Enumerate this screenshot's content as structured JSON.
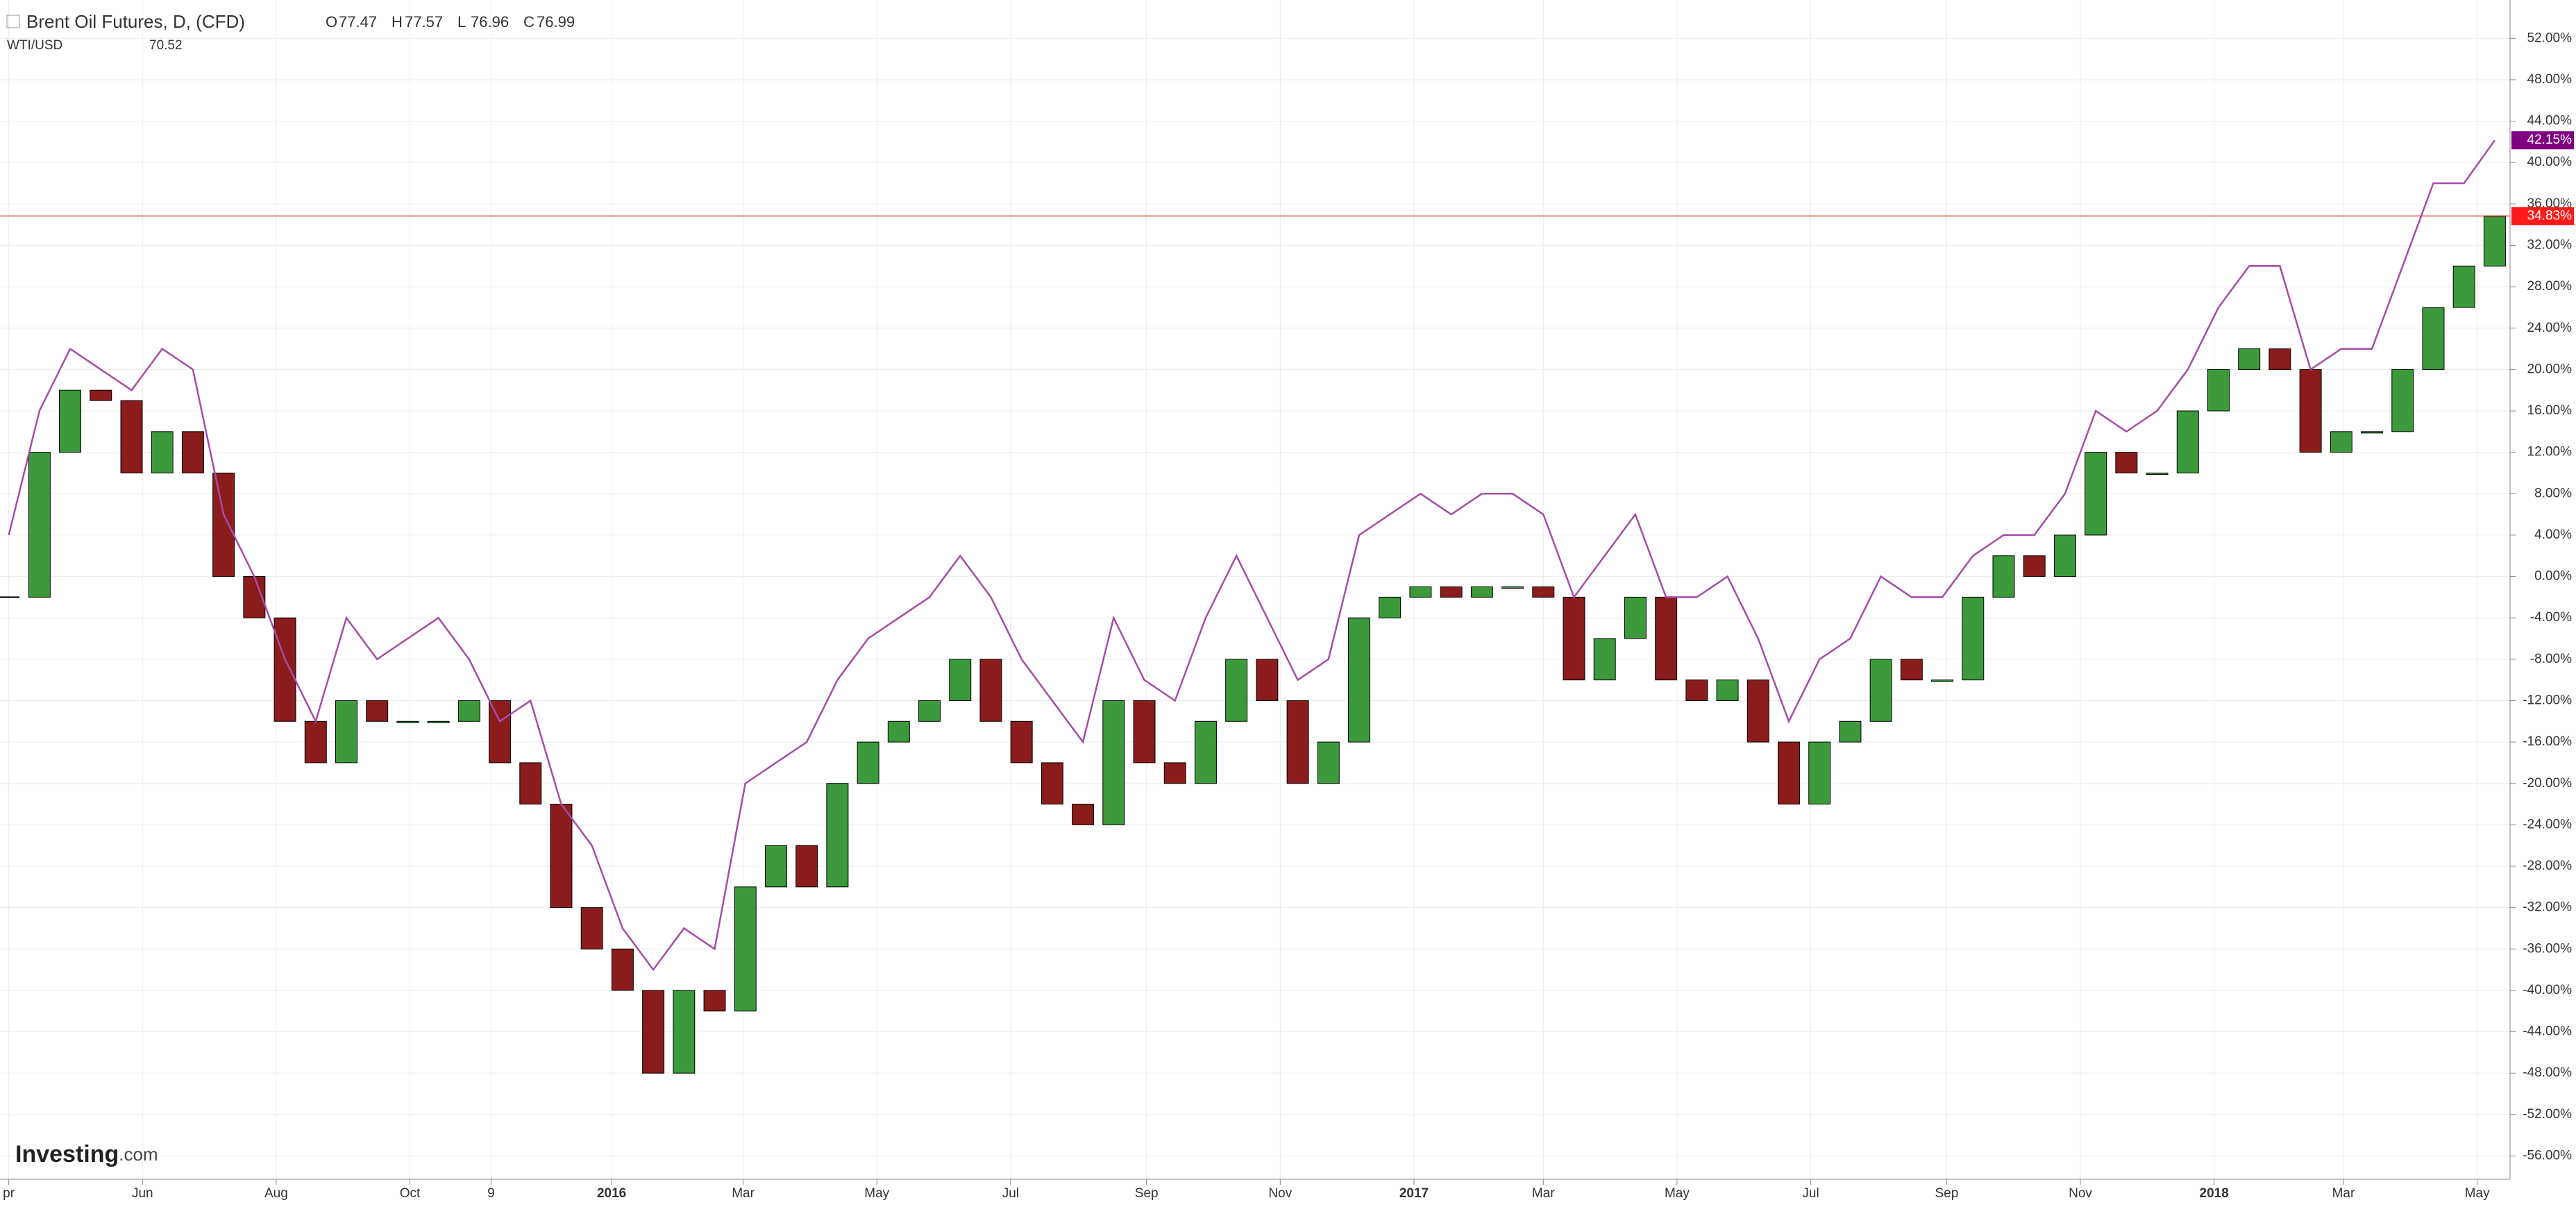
{
  "chart_data": {
    "type": "candlestick",
    "title": "Brent Oil Futures, D, (CFD)",
    "ohlc": [
      {
        "key": "O",
        "value": 77.47
      },
      {
        "key": "H",
        "value": 77.57
      },
      {
        "key": "L",
        "value": 76.96
      },
      {
        "key": "C",
        "value": 76.99
      }
    ],
    "watermark": [
      "Investing",
      ".com"
    ],
    "x": [
      "2015-04-01",
      "2015-04-15",
      "2015-04-29",
      "2015-05-13",
      "2015-05-27",
      "2015-06-10",
      "2015-06-24",
      "2015-07-08",
      "2015-07-22",
      "2015-08-05",
      "2015-08-19",
      "2015-09-02",
      "2015-09-16",
      "2015-09-30",
      "2015-10-14",
      "2015-10-28",
      "2015-11-11",
      "2015-11-25",
      "2015-12-09",
      "2015-12-23",
      "2016-01-06",
      "2016-01-20",
      "2016-02-03",
      "2016-02-17",
      "2016-03-02",
      "2016-03-16",
      "2016-03-30",
      "2016-04-13",
      "2016-04-27",
      "2016-05-11",
      "2016-05-25",
      "2016-06-08",
      "2016-06-22",
      "2016-07-06",
      "2016-07-20",
      "2016-08-03",
      "2016-08-17",
      "2016-08-31",
      "2016-09-14",
      "2016-09-28",
      "2016-10-12",
      "2016-10-26",
      "2016-11-09",
      "2016-11-23",
      "2016-12-07",
      "2016-12-21",
      "2017-01-04",
      "2017-01-18",
      "2017-02-01",
      "2017-02-15",
      "2017-03-01",
      "2017-03-15",
      "2017-03-29",
      "2017-04-12",
      "2017-04-26",
      "2017-05-10",
      "2017-05-24",
      "2017-06-07",
      "2017-06-21",
      "2017-07-05",
      "2017-07-19",
      "2017-08-02",
      "2017-08-16",
      "2017-08-30",
      "2017-09-13",
      "2017-09-27",
      "2017-10-11",
      "2017-10-25",
      "2017-11-08",
      "2017-11-22",
      "2017-12-06",
      "2017-12-20",
      "2018-01-03",
      "2018-01-17",
      "2018-01-31",
      "2018-02-14",
      "2018-02-28",
      "2018-03-14",
      "2018-03-28",
      "2018-04-11",
      "2018-04-25",
      "2018-05-09"
    ],
    "series": [
      {
        "name": "Brent Oil Futures, D, (CFD)",
        "type": "candlestick",
        "up_color": "#3c9a3c",
        "down_color": "#8b1c1c",
        "tag_color": "#ff1a1a",
        "last_label": "34.83%",
        "values": [
          -2,
          12,
          18,
          17,
          10,
          14,
          10,
          0,
          -4,
          -14,
          -18,
          -12,
          -14,
          -14,
          -14,
          -12,
          -18,
          -22,
          -32,
          -36,
          -40,
          -48,
          -40,
          -42,
          -30,
          -26,
          -30,
          -20,
          -16,
          -14,
          -12,
          -8,
          -14,
          -18,
          -22,
          -24,
          -12,
          -18,
          -20,
          -14,
          -8,
          -12,
          -20,
          -16,
          -4,
          -2,
          -1,
          -2,
          -1,
          -1,
          -2,
          -10,
          -6,
          -2,
          -10,
          -12,
          -10,
          -16,
          -22,
          -16,
          -14,
          -8,
          -10,
          -10,
          -2,
          2,
          0,
          4,
          12,
          10,
          10,
          16,
          20,
          22,
          20,
          12,
          14,
          14,
          20,
          26,
          30,
          34.83
        ]
      },
      {
        "name": "WTI/USD",
        "type": "line",
        "color": "#a64ca6",
        "tag_color": "#800080",
        "last_price": 70.52,
        "last_label": "42.15%",
        "values": [
          4,
          16,
          22,
          20,
          18,
          22,
          20,
          6,
          0,
          -8,
          -14,
          -4,
          -8,
          -6,
          -4,
          -8,
          -14,
          -12,
          -22,
          -26,
          -34,
          -38,
          -34,
          -36,
          -20,
          -18,
          -16,
          -10,
          -6,
          -4,
          -2,
          2,
          -2,
          -8,
          -12,
          -16,
          -4,
          -10,
          -12,
          -4,
          2,
          -4,
          -10,
          -8,
          4,
          6,
          8,
          6,
          8,
          8,
          6,
          -2,
          2,
          6,
          -2,
          -2,
          0,
          -6,
          -14,
          -8,
          -6,
          0,
          -2,
          -2,
          2,
          4,
          4,
          8,
          16,
          14,
          16,
          20,
          26,
          30,
          30,
          20,
          22,
          22,
          30,
          38,
          38,
          42.15
        ]
      }
    ],
    "xlim": [
      "2015-03-28",
      "2018-05-16"
    ],
    "xticks": [
      {
        "value": "2015-04-01",
        "label": "pr"
      },
      {
        "value": "2015-06-01",
        "label": "Jun"
      },
      {
        "value": "2015-08-01",
        "label": "Aug"
      },
      {
        "value": "2015-10-01",
        "label": "Oct"
      },
      {
        "value": "2015-11-07",
        "label": "9"
      },
      {
        "value": "2016-01-01",
        "label": "2016"
      },
      {
        "value": "2016-03-01",
        "label": "Mar"
      },
      {
        "value": "2016-05-01",
        "label": "May"
      },
      {
        "value": "2016-07-01",
        "label": "Jul"
      },
      {
        "value": "2016-09-01",
        "label": "Sep"
      },
      {
        "value": "2016-11-01",
        "label": "Nov"
      },
      {
        "value": "2017-01-01",
        "label": "2017"
      },
      {
        "value": "2017-03-01",
        "label": "Mar"
      },
      {
        "value": "2017-05-01",
        "label": "May"
      },
      {
        "value": "2017-07-01",
        "label": "Jul"
      },
      {
        "value": "2017-09-01",
        "label": "Sep"
      },
      {
        "value": "2017-11-01",
        "label": "Nov"
      },
      {
        "value": "2018-01-01",
        "label": "2018"
      },
      {
        "value": "2018-03-01",
        "label": "Mar"
      },
      {
        "value": "2018-05-01",
        "label": "May"
      }
    ],
    "ylim": [
      -58.25,
      55.71
    ],
    "yticks": [
      {
        "value": -56,
        "label": "-56.00%"
      },
      {
        "value": -52,
        "label": "-52.00%"
      },
      {
        "value": -48,
        "label": "-48.00%"
      },
      {
        "value": -44,
        "label": "-44.00%"
      },
      {
        "value": -40,
        "label": "-40.00%"
      },
      {
        "value": -36,
        "label": "-36.00%"
      },
      {
        "value": -32,
        "label": "-32.00%"
      },
      {
        "value": -28,
        "label": "-28.00%"
      },
      {
        "value": -24,
        "label": "-24.00%"
      },
      {
        "value": -20,
        "label": "-20.00%"
      },
      {
        "value": -16,
        "label": "-16.00%"
      },
      {
        "value": -12,
        "label": "-12.00%"
      },
      {
        "value": -8,
        "label": "-8.00%"
      },
      {
        "value": -4,
        "label": "-4.00%"
      },
      {
        "value": 0,
        "label": "0.00%"
      },
      {
        "value": 4,
        "label": "4.00%"
      },
      {
        "value": 8,
        "label": "8.00%"
      },
      {
        "value": 12,
        "label": "12.00%"
      },
      {
        "value": 16,
        "label": "16.00%"
      },
      {
        "value": 20,
        "label": "20.00%"
      },
      {
        "value": 24,
        "label": "24.00%"
      },
      {
        "value": 28,
        "label": "28.00%"
      },
      {
        "value": 32,
        "label": "32.00%"
      },
      {
        "value": 36,
        "label": "36.00%"
      },
      {
        "value": 40,
        "label": "40.00%"
      },
      {
        "value": 44,
        "label": "44.00%"
      },
      {
        "value": 48,
        "label": "48.00%"
      },
      {
        "value": 52,
        "label": "52.00%"
      }
    ],
    "grid": true
  }
}
